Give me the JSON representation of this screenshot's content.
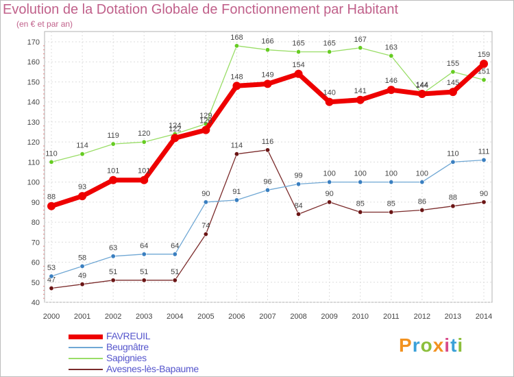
{
  "title": "Evolution de la Dotation Globale de Fonctionnement par Habitant",
  "subtitle": "(en € et par an)",
  "logo": {
    "text": "Proxiti",
    "colors": [
      "#f29220",
      "#3aa0d8",
      "#8cbf3c",
      "#f29220",
      "#d84b8a",
      "#3aa0d8",
      "#8cbf3c"
    ]
  },
  "chart_data": {
    "type": "line",
    "x": [
      "2000",
      "2001",
      "2002",
      "2003",
      "2004",
      "2005",
      "2006",
      "2007",
      "2008",
      "2009",
      "2010",
      "2011",
      "2012",
      "2013",
      "2014"
    ],
    "ylim": [
      40,
      170
    ],
    "yticks": [
      "40",
      "50",
      "60",
      "70",
      "80",
      "90",
      "100",
      "110",
      "120",
      "130",
      "140",
      "150",
      "160",
      "170"
    ],
    "grid": true,
    "legend_position": "bottom-left",
    "series": [
      {
        "name": "Avesnes-lès-Bapaume",
        "color": "#7a2a2a",
        "marker": "#6b1515",
        "values": [
          47,
          49,
          51,
          51,
          51,
          74,
          114,
          116,
          84,
          90,
          85,
          85,
          86,
          88,
          90
        ]
      },
      {
        "name": "Beugnâtre",
        "color": "#6fa7d4",
        "marker": "#3a7fc0",
        "values": [
          53,
          58,
          63,
          64,
          64,
          90,
          91,
          96,
          99,
          100,
          100,
          100,
          100,
          110,
          111
        ]
      },
      {
        "name": "Sapignies",
        "color": "#99dd66",
        "marker": "#66cc22",
        "values": [
          110,
          114,
          119,
          120,
          124,
          129,
          168,
          166,
          165,
          165,
          167,
          163,
          144,
          155,
          151
        ]
      },
      {
        "name": "FAVREUIL",
        "color": "#ee0000",
        "marker": "#ee0000",
        "values": [
          88,
          93,
          101,
          101,
          122,
          126,
          148,
          149,
          154,
          140,
          141,
          146,
          144,
          145,
          159
        ]
      }
    ],
    "legend_order": [
      "FAVREUIL",
      "Beugnâtre",
      "Sapignies",
      "Avesnes-lès-Bapaume"
    ]
  }
}
